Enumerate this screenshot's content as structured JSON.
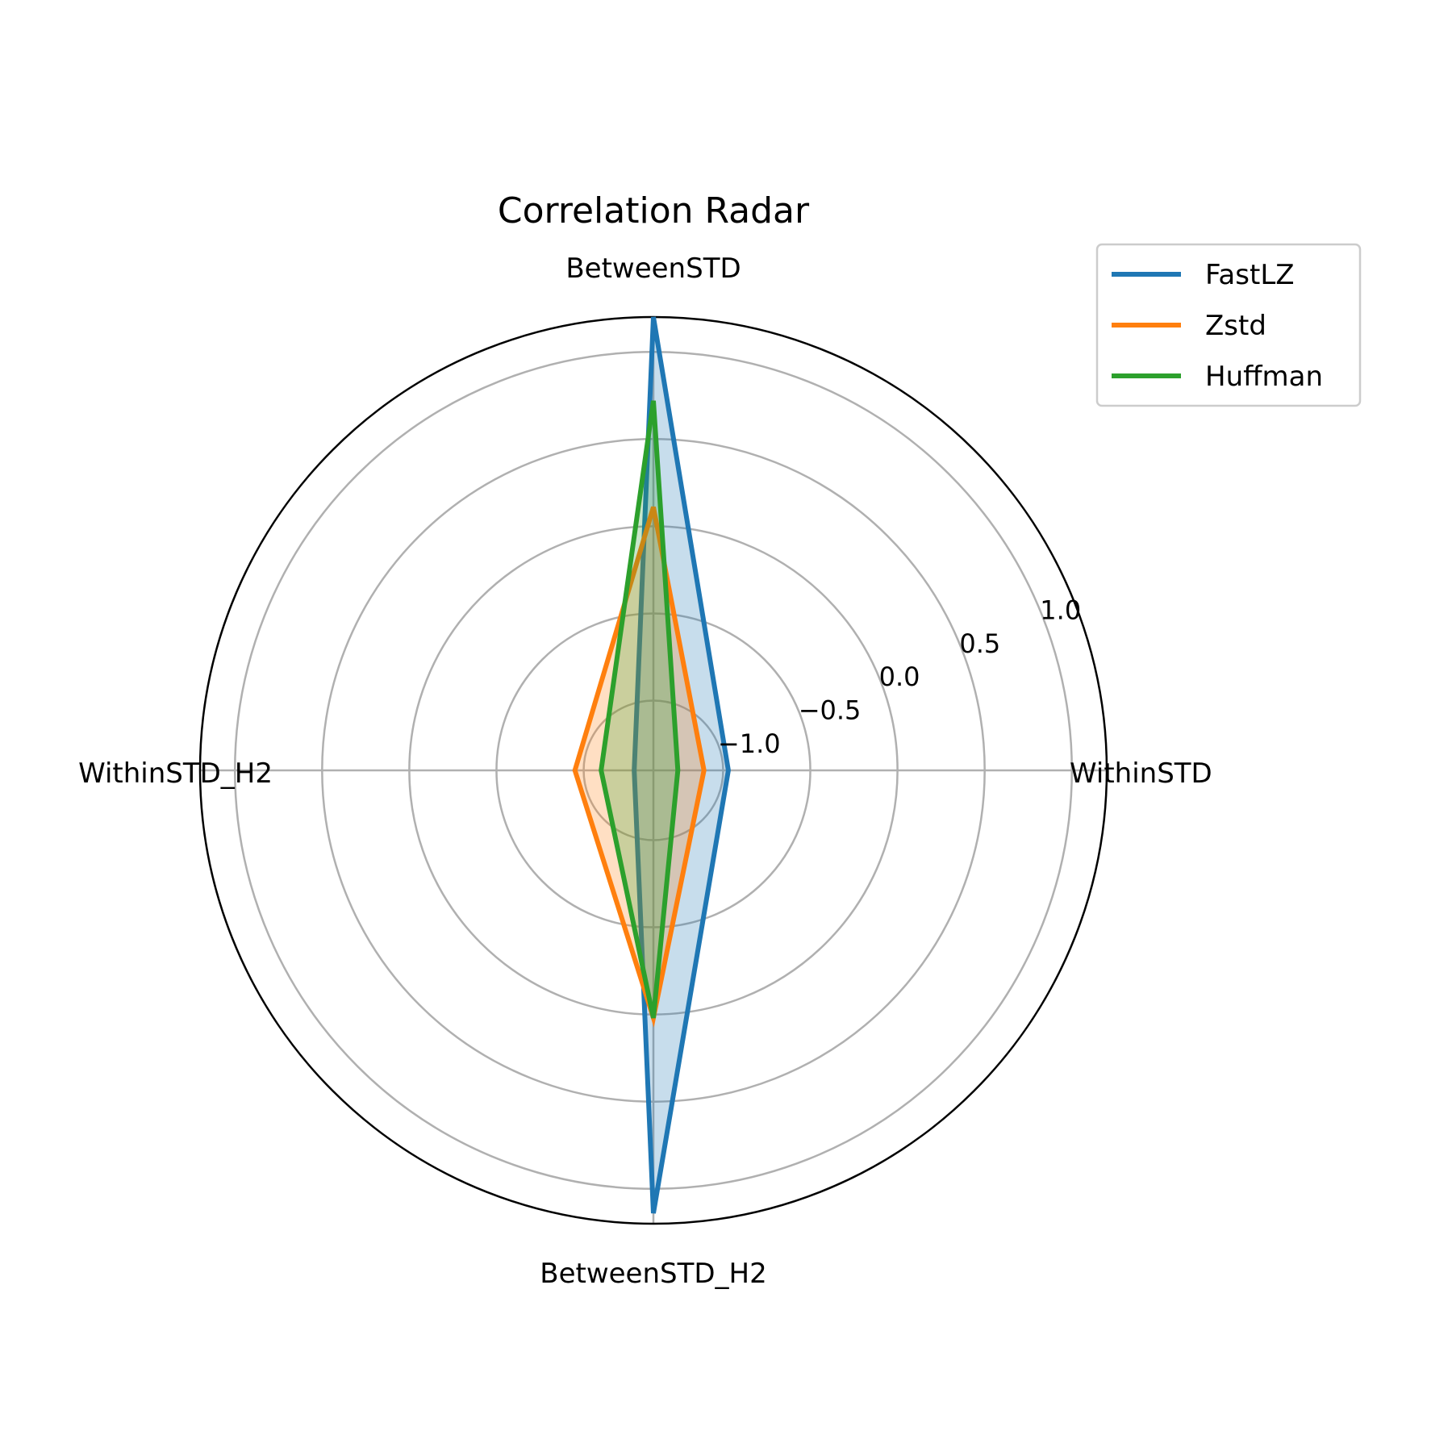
{
  "chart_data": {
    "type": "radar",
    "title": "Correlation Radar",
    "axes": [
      "WithinSTD",
      "BetweenSTD",
      "WithinSTD_H2",
      "BetweenSTD_H2"
    ],
    "rlim": [
      -1.4,
      1.2
    ],
    "rticks": [
      -1.0,
      -0.5,
      0.0,
      0.5,
      1.0
    ],
    "rtick_labels": [
      "−1.0",
      "−0.5",
      "0.0",
      "0.5",
      "1.0"
    ],
    "grid": true,
    "legend_position": "top-right",
    "series": [
      {
        "name": "FastLZ",
        "color": "#1f77b4",
        "values": [
          -0.97,
          1.2,
          -1.29,
          1.14
        ]
      },
      {
        "name": "Zstd",
        "color": "#ff7f0e",
        "values": [
          -1.11,
          0.11,
          -0.95,
          0.02
        ]
      },
      {
        "name": "Huffman",
        "color": "#2ca02c",
        "values": [
          -1.26,
          0.72,
          -1.1,
          0.02
        ]
      }
    ]
  }
}
